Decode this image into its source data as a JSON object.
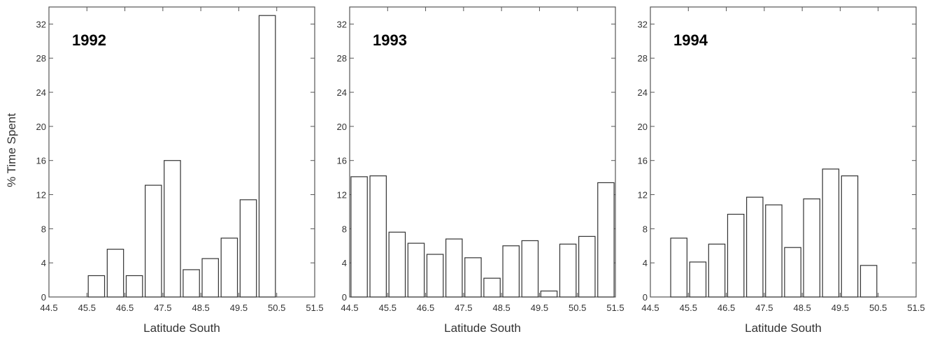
{
  "figure": {
    "ylabel": "% Time Spent"
  },
  "chart_data": [
    {
      "type": "bar",
      "title": "1992",
      "xlabel": "Latitude South",
      "ylabel": "% Time Spent",
      "x_ticks": [
        "44.5",
        "45.5",
        "46.5",
        "47.5",
        "48.5",
        "49.5",
        "50.5",
        "51.5"
      ],
      "y_ticks": [
        "0",
        "4",
        "8",
        "12",
        "16",
        "20",
        "24",
        "28",
        "32"
      ],
      "xlim": [
        44.5,
        51.5
      ],
      "ylim": [
        0,
        34
      ],
      "bin_width": 0.5,
      "bins": [
        {
          "x": 44.75,
          "value": 0
        },
        {
          "x": 45.25,
          "value": 0
        },
        {
          "x": 45.75,
          "value": 2.5
        },
        {
          "x": 46.25,
          "value": 5.6
        },
        {
          "x": 46.75,
          "value": 2.5
        },
        {
          "x": 47.25,
          "value": 13.1
        },
        {
          "x": 47.75,
          "value": 16.0
        },
        {
          "x": 48.25,
          "value": 3.2
        },
        {
          "x": 48.75,
          "value": 4.5
        },
        {
          "x": 49.25,
          "value": 6.9
        },
        {
          "x": 49.75,
          "value": 11.4
        },
        {
          "x": 50.25,
          "value": 33.0
        }
      ]
    },
    {
      "type": "bar",
      "title": "1993",
      "xlabel": "Latitude South",
      "ylabel": "",
      "x_ticks": [
        "44.5",
        "45.5",
        "46.5",
        "47.5",
        "48.5",
        "49.5",
        "50.5",
        "51.5"
      ],
      "y_ticks": [
        "0",
        "4",
        "8",
        "12",
        "16",
        "20",
        "24",
        "28",
        "32"
      ],
      "xlim": [
        44.5,
        51.5
      ],
      "ylim": [
        0,
        34
      ],
      "bin_width": 0.5,
      "bins": [
        {
          "x": 44.75,
          "value": 14.1
        },
        {
          "x": 45.25,
          "value": 14.2
        },
        {
          "x": 45.75,
          "value": 7.6
        },
        {
          "x": 46.25,
          "value": 6.3
        },
        {
          "x": 46.75,
          "value": 5.0
        },
        {
          "x": 47.25,
          "value": 6.8
        },
        {
          "x": 47.75,
          "value": 4.6
        },
        {
          "x": 48.25,
          "value": 2.2
        },
        {
          "x": 48.75,
          "value": 6.0
        },
        {
          "x": 49.25,
          "value": 6.6
        },
        {
          "x": 49.75,
          "value": 0.7
        },
        {
          "x": 50.25,
          "value": 6.2
        },
        {
          "x": 50.75,
          "value": 7.1
        },
        {
          "x": 51.25,
          "value": 13.4
        }
      ]
    },
    {
      "type": "bar",
      "title": "1994",
      "xlabel": "Latitude South",
      "ylabel": "",
      "x_ticks": [
        "44.5",
        "45.5",
        "46.5",
        "47.5",
        "48.5",
        "49.5",
        "50.5",
        "51.5"
      ],
      "y_ticks": [
        "0",
        "4",
        "8",
        "12",
        "16",
        "20",
        "24",
        "28",
        "32"
      ],
      "xlim": [
        44.5,
        51.5
      ],
      "ylim": [
        0,
        34
      ],
      "bin_width": 0.5,
      "bins": [
        {
          "x": 45.25,
          "value": 6.9
        },
        {
          "x": 45.75,
          "value": 4.1
        },
        {
          "x": 46.25,
          "value": 6.2
        },
        {
          "x": 46.75,
          "value": 9.7
        },
        {
          "x": 47.25,
          "value": 11.7
        },
        {
          "x": 47.75,
          "value": 10.8
        },
        {
          "x": 48.25,
          "value": 5.8
        },
        {
          "x": 48.75,
          "value": 11.5
        },
        {
          "x": 49.25,
          "value": 15.0
        },
        {
          "x": 49.75,
          "value": 14.2
        },
        {
          "x": 50.25,
          "value": 3.7
        }
      ]
    }
  ]
}
